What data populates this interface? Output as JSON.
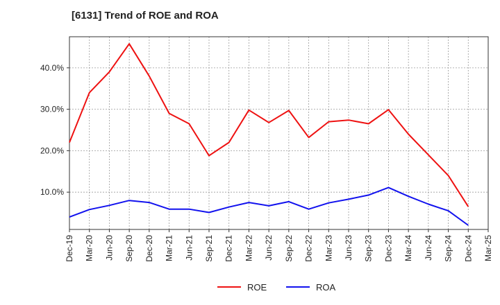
{
  "chart_data": {
    "type": "line",
    "title": "[6131]  Trend of ROE and ROA",
    "xlabel": "",
    "ylabel": "",
    "categories": [
      "Dec-19",
      "Mar-20",
      "Jun-20",
      "Sep-20",
      "Dec-20",
      "Mar-21",
      "Jun-21",
      "Sep-21",
      "Dec-21",
      "Mar-22",
      "Jun-22",
      "Sep-22",
      "Dec-22",
      "Mar-23",
      "Jun-23",
      "Sep-23",
      "Dec-23",
      "Mar-24",
      "Jun-24",
      "Sep-24",
      "Dec-24",
      "Mar-25"
    ],
    "y_ticks": [
      "10.0%",
      "20.0%",
      "30.0%",
      "40.0%"
    ],
    "y_tick_values": [
      10,
      20,
      30,
      40
    ],
    "ylim": [
      1,
      47.5
    ],
    "grid": true,
    "legend_position": "bottom-center",
    "series": [
      {
        "name": "ROE",
        "color": "#ee1111",
        "values": [
          22.0,
          34.0,
          39.0,
          45.8,
          38.0,
          29.0,
          26.5,
          18.8,
          22.0,
          29.8,
          26.8,
          29.7,
          23.2,
          27.0,
          27.4,
          26.5,
          29.9,
          24.0,
          19.0,
          14.0,
          6.5,
          null
        ]
      },
      {
        "name": "ROA",
        "color": "#1111ee",
        "values": [
          4.0,
          5.8,
          6.8,
          8.0,
          7.5,
          5.9,
          5.9,
          5.1,
          6.4,
          7.5,
          6.7,
          7.7,
          5.9,
          7.4,
          8.3,
          9.3,
          11.1,
          9.0,
          7.1,
          5.5,
          2.0,
          null
        ]
      }
    ]
  }
}
